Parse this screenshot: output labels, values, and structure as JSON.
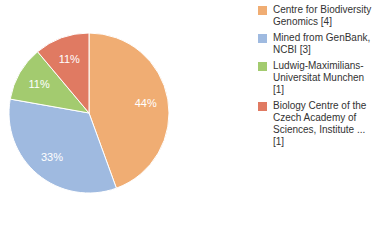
{
  "chart_data": {
    "type": "pie",
    "categories": [
      "Centre for Biodiversity Genomics [4]",
      "Mined from GenBank, NCBI [3]",
      "Ludwig-Maximilians-Universitat Munchen [1]",
      "Biology Centre of the Czech Academy of Sciences, Institute ... [1]"
    ],
    "values": [
      44,
      33,
      11,
      11
    ],
    "value_labels": [
      "44%",
      "33%",
      "11%",
      "11%"
    ],
    "colors": [
      "#f0ad73",
      "#9fbae0",
      "#a3cb6f",
      "#e07a62"
    ],
    "data_labels": true,
    "legend": "right"
  }
}
